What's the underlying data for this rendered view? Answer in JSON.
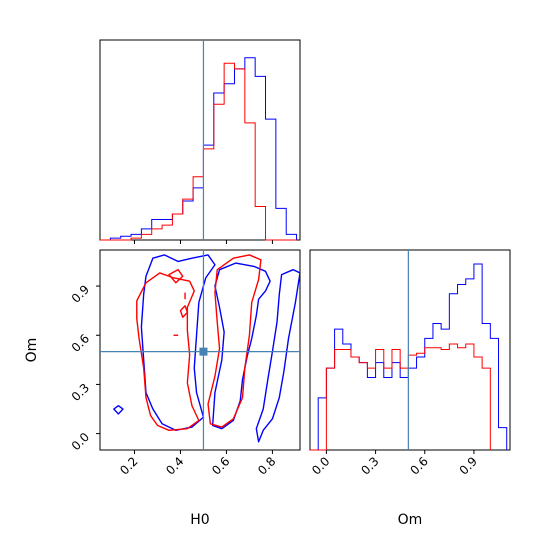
{
  "chart_data": {
    "type": "corner",
    "parameters": [
      "H0",
      "Om"
    ],
    "truth": {
      "H0": 0.5,
      "Om": 0.5
    },
    "colors": {
      "series_blue": "#0000ff",
      "series_red": "#ff0000",
      "truth_line": "#4682b4"
    },
    "axes": {
      "H0": {
        "range": [
          0.05,
          0.92
        ],
        "ticks": [
          0.2,
          0.4,
          0.6,
          0.8
        ],
        "tick_labels": [
          "0.2",
          "0.4",
          "0.6",
          "0.8"
        ],
        "label": "H0"
      },
      "Om": {
        "range": [
          -0.1,
          1.12
        ],
        "ticks": [
          0.0,
          0.3,
          0.6,
          0.9
        ],
        "tick_labels": [
          "0.0",
          "0.3",
          "0.6",
          "0.9"
        ],
        "label": "Om"
      }
    },
    "hist_H0": {
      "blue": {
        "bin_edges": [
          0.05,
          0.095,
          0.14,
          0.185,
          0.23,
          0.275,
          0.32,
          0.365,
          0.41,
          0.455,
          0.5,
          0.545,
          0.59,
          0.635,
          0.68,
          0.725,
          0.77,
          0.815,
          0.86,
          0.905
        ],
        "counts": [
          0.0,
          0.01,
          0.02,
          0.03,
          0.06,
          0.11,
          0.11,
          0.14,
          0.21,
          0.28,
          0.51,
          0.79,
          0.84,
          0.92,
          0.98,
          0.88,
          0.65,
          0.17,
          0.03
        ]
      },
      "red": {
        "bin_edges": [
          0.05,
          0.095,
          0.14,
          0.185,
          0.23,
          0.275,
          0.32,
          0.365,
          0.41,
          0.455,
          0.5,
          0.545,
          0.59,
          0.635,
          0.68,
          0.725,
          0.77,
          0.815,
          0.86,
          0.905
        ],
        "counts": [
          0.0,
          0.0,
          0.0,
          0.01,
          0.03,
          0.06,
          0.08,
          0.14,
          0.22,
          0.34,
          0.49,
          0.73,
          0.95,
          0.92,
          0.63,
          0.18,
          0.0,
          0.0,
          0.0
        ]
      }
    },
    "hist_Om": {
      "blue": {
        "bin_edges": [
          -0.1,
          -0.05,
          0.0,
          0.05,
          0.1,
          0.15,
          0.2,
          0.25,
          0.3,
          0.35,
          0.4,
          0.45,
          0.5,
          0.55,
          0.6,
          0.65,
          0.7,
          0.75,
          0.8,
          0.85,
          0.9,
          0.95,
          1.0,
          1.05,
          1.1
        ],
        "counts": [
          0.0,
          0.28,
          0.44,
          0.65,
          0.57,
          0.5,
          0.47,
          0.39,
          0.47,
          0.39,
          0.47,
          0.39,
          0.44,
          0.5,
          0.6,
          0.68,
          0.65,
          0.84,
          0.89,
          0.92,
          1.0,
          0.68,
          0.6,
          0.12
        ]
      },
      "red": {
        "bin_edges": [
          -0.1,
          -0.05,
          0.0,
          0.05,
          0.1,
          0.15,
          0.2,
          0.25,
          0.3,
          0.35,
          0.4,
          0.45,
          0.5,
          0.55,
          0.6,
          0.65,
          0.7,
          0.75,
          0.8,
          0.85,
          0.9,
          0.95,
          1.0
        ],
        "counts": [
          0.0,
          0.0,
          0.44,
          0.54,
          0.54,
          0.5,
          0.47,
          0.44,
          0.54,
          0.44,
          0.54,
          0.44,
          0.51,
          0.52,
          0.55,
          0.55,
          0.54,
          0.57,
          0.55,
          0.57,
          0.5,
          0.44
        ]
      }
    },
    "contours_2d": {
      "x_param": "H0",
      "y_param": "Om",
      "blue": [
        [
          [
            0.25,
            0.96
          ],
          [
            0.28,
            1.07
          ],
          [
            0.33,
            1.09
          ],
          [
            0.39,
            1.05
          ],
          [
            0.45,
            1.07
          ],
          [
            0.52,
            1.09
          ],
          [
            0.55,
            1.03
          ],
          [
            0.51,
            0.95
          ],
          [
            0.48,
            0.8
          ],
          [
            0.47,
            0.6
          ],
          [
            0.46,
            0.4
          ],
          [
            0.47,
            0.25
          ],
          [
            0.5,
            0.1
          ],
          [
            0.45,
            0.04
          ],
          [
            0.38,
            0.02
          ],
          [
            0.32,
            0.06
          ],
          [
            0.28,
            0.15
          ],
          [
            0.25,
            0.25
          ],
          [
            0.24,
            0.45
          ],
          [
            0.23,
            0.65
          ],
          [
            0.24,
            0.85
          ],
          [
            0.25,
            0.96
          ]
        ],
        [
          [
            0.57,
            1.0
          ],
          [
            0.64,
            1.04
          ],
          [
            0.72,
            1.02
          ],
          [
            0.77,
            0.99
          ],
          [
            0.79,
            0.93
          ],
          [
            0.77,
            0.87
          ],
          [
            0.74,
            0.82
          ],
          [
            0.73,
            0.72
          ],
          [
            0.71,
            0.58
          ],
          [
            0.69,
            0.47
          ],
          [
            0.67,
            0.33
          ],
          [
            0.66,
            0.2
          ],
          [
            0.63,
            0.08
          ],
          [
            0.58,
            0.03
          ],
          [
            0.54,
            0.05
          ],
          [
            0.55,
            0.25
          ],
          [
            0.58,
            0.45
          ],
          [
            0.59,
            0.62
          ],
          [
            0.57,
            0.77
          ],
          [
            0.55,
            0.9
          ],
          [
            0.57,
            1.0
          ]
        ],
        [
          [
            0.84,
            0.97
          ],
          [
            0.89,
            1.0
          ],
          [
            0.92,
            0.98
          ],
          [
            0.9,
            0.8
          ],
          [
            0.87,
            0.58
          ],
          [
            0.85,
            0.38
          ],
          [
            0.83,
            0.22
          ],
          [
            0.8,
            0.09
          ],
          [
            0.76,
            0.02
          ],
          [
            0.74,
            -0.05
          ],
          [
            0.73,
            0.03
          ],
          [
            0.76,
            0.15
          ],
          [
            0.78,
            0.33
          ],
          [
            0.8,
            0.5
          ],
          [
            0.82,
            0.68
          ],
          [
            0.83,
            0.85
          ],
          [
            0.84,
            0.97
          ]
        ],
        [
          [
            0.11,
            0.15
          ],
          [
            0.13,
            0.17
          ],
          [
            0.15,
            0.15
          ],
          [
            0.13,
            0.12
          ],
          [
            0.11,
            0.15
          ]
        ]
      ],
      "red": [
        [
          [
            0.21,
            0.81
          ],
          [
            0.25,
            0.92
          ],
          [
            0.31,
            0.98
          ],
          [
            0.37,
            0.95
          ],
          [
            0.44,
            0.93
          ],
          [
            0.46,
            0.87
          ],
          [
            0.43,
            0.77
          ],
          [
            0.43,
            0.63
          ],
          [
            0.44,
            0.48
          ],
          [
            0.43,
            0.31
          ],
          [
            0.45,
            0.17
          ],
          [
            0.48,
            0.08
          ],
          [
            0.43,
            0.03
          ],
          [
            0.35,
            0.02
          ],
          [
            0.3,
            0.05
          ],
          [
            0.27,
            0.11
          ],
          [
            0.25,
            0.22
          ],
          [
            0.24,
            0.4
          ],
          [
            0.22,
            0.58
          ],
          [
            0.21,
            0.7
          ],
          [
            0.21,
            0.81
          ]
        ],
        [
          [
            0.56,
            1.0
          ],
          [
            0.63,
            1.07
          ],
          [
            0.7,
            1.09
          ],
          [
            0.75,
            1.06
          ],
          [
            0.74,
            0.94
          ],
          [
            0.71,
            0.8
          ],
          [
            0.7,
            0.6
          ],
          [
            0.68,
            0.4
          ],
          [
            0.67,
            0.22
          ],
          [
            0.63,
            0.09
          ],
          [
            0.58,
            0.04
          ],
          [
            0.53,
            0.06
          ],
          [
            0.52,
            0.18
          ],
          [
            0.55,
            0.35
          ],
          [
            0.57,
            0.52
          ],
          [
            0.56,
            0.68
          ],
          [
            0.55,
            0.86
          ],
          [
            0.56,
            1.0
          ]
        ],
        [
          [
            0.35,
            0.97
          ],
          [
            0.39,
            1.0
          ],
          [
            0.41,
            0.96
          ],
          [
            0.38,
            0.92
          ],
          [
            0.35,
            0.97
          ]
        ],
        [
          [
            0.4,
            0.75
          ],
          [
            0.42,
            0.78
          ],
          [
            0.43,
            0.74
          ],
          [
            0.41,
            0.71
          ],
          [
            0.4,
            0.75
          ]
        ]
      ]
    }
  }
}
